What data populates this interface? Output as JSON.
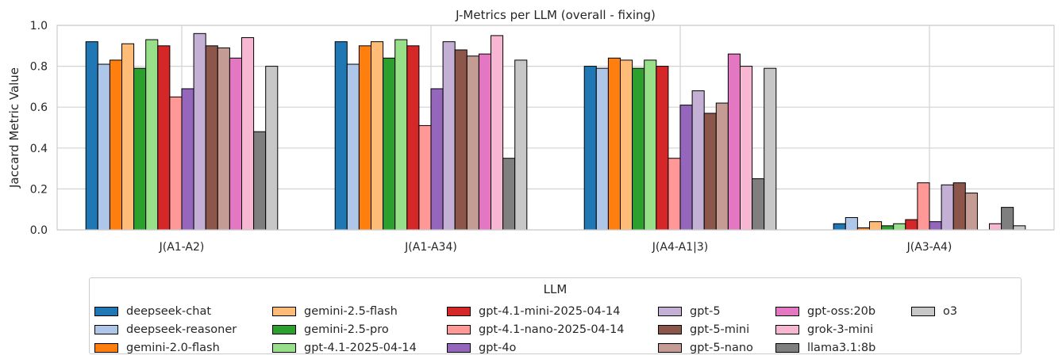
{
  "chart_data": {
    "type": "bar",
    "title": "J-Metrics per LLM (overall - fixing)",
    "xlabel": "",
    "ylabel": "Jaccard Metric Value",
    "ylim": [
      0,
      1.0
    ],
    "yticks": [
      "0.0",
      "0.2",
      "0.4",
      "0.6",
      "0.8",
      "1.0"
    ],
    "grid": true,
    "categories": [
      "J(A1-A2)",
      "J(A1-A34)",
      "J(A4-A1|3)",
      "J(A3-A4)"
    ],
    "legend_title": "LLM",
    "legend_position": "below",
    "series": [
      {
        "name": "deepseek-chat",
        "color": "#1f77b4",
        "values": [
          0.92,
          0.92,
          0.8,
          0.03
        ]
      },
      {
        "name": "deepseek-reasoner",
        "color": "#aec7e8",
        "values": [
          0.81,
          0.81,
          0.79,
          0.06
        ]
      },
      {
        "name": "gemini-2.0-flash",
        "color": "#ff7f0e",
        "values": [
          0.83,
          0.9,
          0.84,
          0.01
        ]
      },
      {
        "name": "gemini-2.5-flash",
        "color": "#ffbb78",
        "values": [
          0.91,
          0.92,
          0.83,
          0.04
        ]
      },
      {
        "name": "gemini-2.5-pro",
        "color": "#2ca02c",
        "values": [
          0.79,
          0.84,
          0.79,
          0.02
        ]
      },
      {
        "name": "gpt-4.1-2025-04-14",
        "color": "#98df8a",
        "values": [
          0.93,
          0.93,
          0.83,
          0.03
        ]
      },
      {
        "name": "gpt-4.1-mini-2025-04-14",
        "color": "#d62728",
        "values": [
          0.9,
          0.9,
          0.8,
          0.05
        ]
      },
      {
        "name": "gpt-4.1-nano-2025-04-14",
        "color": "#ff9896",
        "values": [
          0.65,
          0.51,
          0.35,
          0.23
        ]
      },
      {
        "name": "gpt-4o",
        "color": "#9467bd",
        "values": [
          0.69,
          0.69,
          0.61,
          0.04
        ]
      },
      {
        "name": "gpt-5",
        "color": "#c5b0d5",
        "values": [
          0.96,
          0.92,
          0.68,
          0.22
        ]
      },
      {
        "name": "gpt-5-mini",
        "color": "#8c564b",
        "values": [
          0.9,
          0.88,
          0.57,
          0.23
        ]
      },
      {
        "name": "gpt-5-nano",
        "color": "#c49c94",
        "values": [
          0.89,
          0.85,
          0.62,
          0.18
        ]
      },
      {
        "name": "gpt-oss:20b",
        "color": "#e377c2",
        "values": [
          0.84,
          0.86,
          0.86,
          0.0
        ]
      },
      {
        "name": "grok-3-mini",
        "color": "#f7b6d2",
        "values": [
          0.94,
          0.95,
          0.8,
          0.03
        ]
      },
      {
        "name": "llama3.1:8b",
        "color": "#7f7f7f",
        "values": [
          0.48,
          0.35,
          0.25,
          0.11
        ]
      },
      {
        "name": "o3",
        "color": "#c7c7c7",
        "values": [
          0.8,
          0.83,
          0.79,
          0.02
        ]
      }
    ]
  }
}
